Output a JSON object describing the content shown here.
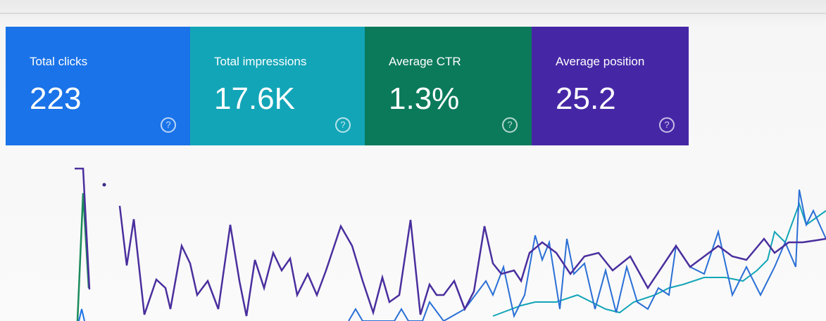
{
  "cards": [
    {
      "label": "Total clicks",
      "value": "223",
      "help": "?",
      "color": "#1a73e8"
    },
    {
      "label": "Total impressions",
      "value": "17.6K",
      "help": "?",
      "color": "#12a5b7"
    },
    {
      "label": "Average CTR",
      "value": "1.3%",
      "help": "?",
      "color": "#0b7a5b"
    },
    {
      "label": "Average position",
      "value": "25.2",
      "help": "?",
      "color": "#4527a6"
    }
  ]
}
